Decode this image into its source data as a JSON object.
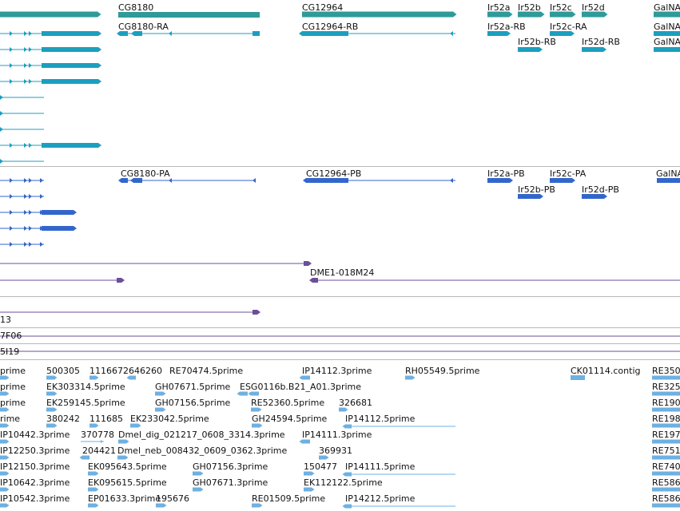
{
  "palette": {
    "gene": "#2e9a9a",
    "flybase_transcript": "#1c9fbf",
    "protein_coding": "#3366cc",
    "bac_clone": "#6b4f9b",
    "est": "#6fb0e0",
    "separator": "#b8b8b8"
  },
  "icons": {
    "forward_arrow": "right-pointing-triangle-icon",
    "reverse_arrow": "left-pointing-triangle-icon"
  },
  "gene_labels": [
    "CG8180",
    "CG12964",
    "Ir52a",
    "Ir52b",
    "Ir52c",
    "Ir52d",
    "GalNA"
  ],
  "flybase_transcript_labels": [
    "CG8180-RA",
    "CG12964-RB",
    "Ir52a-RB",
    "Ir52c-RA",
    "GalNA",
    "Ir52b-RB",
    "Ir52d-RB",
    "GalNA"
  ],
  "protein_transcript_labels": [
    "CG8180-PA",
    "CG12964-PB",
    "Ir52a-PB",
    "Ir52c-PA",
    "GalNA",
    "Ir52b-PB",
    "Ir52d-PB"
  ],
  "clone_labels": [
    "DME1-018M24",
    "13",
    "7F06",
    "5I19"
  ],
  "est_labels": [
    "prime",
    "500305",
    "1116672646260",
    "RE70474.5prime",
    "IP14112.3prime",
    "RH05549.5prime",
    "CK01114.contig",
    "RE350",
    "prime",
    "EK303314.5prime",
    "GH07671.5prime",
    "ESG0116b.B21_A01.3prime",
    "RE325",
    "prime",
    "EK259145.5prime",
    "GH07156.5prime",
    "RE52360.5prime",
    "326681",
    "RE190",
    "rime",
    "380242",
    "111685",
    "EK233042.5prime",
    "GH24594.5prime",
    "IP14112.5prime",
    "RE198",
    "IP10442.3prime",
    "370778",
    "Dmel_dig_021217_0608_3314.3prime",
    "IP14111.3prime",
    "RE197",
    "IP12250.3prime",
    "204421",
    "Dmel_neb_008432_0609_0362.3prime",
    "369931",
    "RE751",
    "IP12150.3prime",
    "EK095643.5prime",
    "GH07156.3prime",
    "150477",
    "IP14111.5prime",
    "RE740",
    "IP10642.3prime",
    "EK095615.5prime",
    "GH07671.3prime",
    "EK112122.5prime",
    "RE586",
    "IP10542.3prime",
    "EP01633.3prime",
    "195676",
    "RE01509.5prime",
    "IP14212.5prime",
    "RE586"
  ]
}
